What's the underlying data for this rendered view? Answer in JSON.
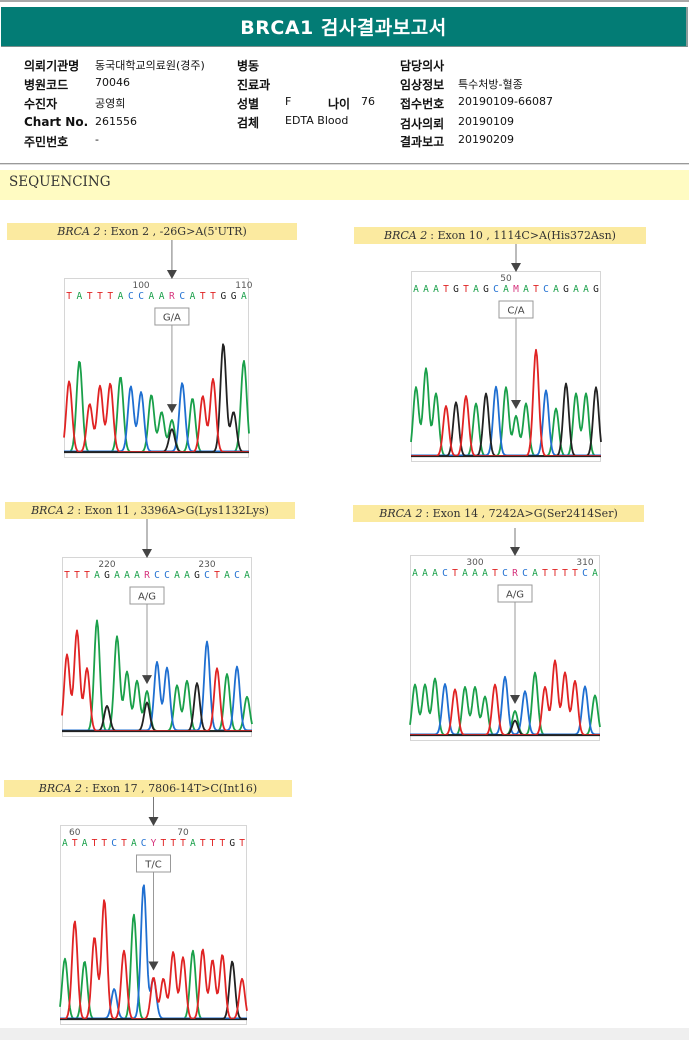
{
  "report": {
    "title": "BRCA1 검사결과보고서",
    "accent_color": "#037c75"
  },
  "patient_info": {
    "left": [
      {
        "label": "의뢰기관명",
        "value": "동국대학교의료원(경주)"
      },
      {
        "label": "병원코드",
        "value": "70046"
      },
      {
        "label": "수진자",
        "value": "공영희"
      },
      {
        "label": "Chart No.",
        "value": "261556"
      },
      {
        "label": "주민번호",
        "value": "-"
      }
    ],
    "middle": [
      {
        "label": "병동",
        "value": ""
      },
      {
        "label": "진료과",
        "value": ""
      },
      {
        "label": "성별",
        "value": "F"
      },
      {
        "label": "검체",
        "value": "EDTA Blood"
      }
    ],
    "age": {
      "label": "나이",
      "value": "76"
    },
    "right": [
      {
        "label": "담당의사",
        "value": ""
      },
      {
        "label": "임상정보",
        "value": "특수처방-혈종"
      },
      {
        "label": "접수번호",
        "value": "20190109-66087"
      },
      {
        "label": "검사의뢰",
        "value": "20190109"
      },
      {
        "label": "결과보고",
        "value": "20190209"
      }
    ]
  },
  "section": {
    "title": "SEQUENCING"
  },
  "base_colors": {
    "A": "#1aa04a",
    "C": "#1f6fd1",
    "G": "#222222",
    "T": "#e02424",
    "ambiguous": "#d6337c"
  },
  "variants": [
    {
      "gene": "BRCA 2",
      "description": ": Exon 2 , -26G>A(5'UTR)",
      "call": "G/A",
      "sequence": "TATTTACCAARCATTGGA",
      "variant_index": 10,
      "position_labels": [
        {
          "text": "100",
          "index": 7
        },
        {
          "text": "110",
          "index": 17
        }
      ],
      "peaks": [
        {
          "b": "T",
          "h": 0.62
        },
        {
          "b": "A",
          "h": 0.8
        },
        {
          "b": "T",
          "h": 0.42
        },
        {
          "b": "T",
          "h": 0.58
        },
        {
          "b": "T",
          "h": 0.6
        },
        {
          "b": "A",
          "h": 0.66
        },
        {
          "b": "C",
          "h": 0.57
        },
        {
          "b": "C",
          "h": 0.52
        },
        {
          "b": "A",
          "h": 0.5
        },
        {
          "b": "A",
          "h": 0.35
        },
        {
          "b": "A",
          "h": 0.28,
          "minor": "G",
          "mh": 0.2
        },
        {
          "b": "C",
          "h": 0.6
        },
        {
          "b": "A",
          "h": 0.47
        },
        {
          "b": "T",
          "h": 0.49
        },
        {
          "b": "T",
          "h": 0.64
        },
        {
          "b": "G",
          "h": 0.95
        },
        {
          "b": "G",
          "h": 0.35
        },
        {
          "b": "A",
          "h": 0.8
        }
      ]
    },
    {
      "gene": "BRCA 2",
      "description": ": Exon 10 , 1114C>A(His372Asn)",
      "call": "C/A",
      "sequence": "AAATGTAGCAMATCAGAAG",
      "variant_index": 10,
      "position_labels": [
        {
          "text": "50",
          "index": 9
        }
      ],
      "peaks": [
        {
          "b": "A",
          "h": 0.55
        },
        {
          "b": "A",
          "h": 0.7
        },
        {
          "b": "A",
          "h": 0.5
        },
        {
          "b": "T",
          "h": 0.4
        },
        {
          "b": "G",
          "h": 0.43
        },
        {
          "b": "T",
          "h": 0.48
        },
        {
          "b": "A",
          "h": 0.42
        },
        {
          "b": "G",
          "h": 0.5
        },
        {
          "b": "C",
          "h": 0.55
        },
        {
          "b": "A",
          "h": 0.55
        },
        {
          "b": "A",
          "h": 0.32,
          "minor": "C",
          "mh": 0.0
        },
        {
          "b": "A",
          "h": 0.42
        },
        {
          "b": "T",
          "h": 0.85
        },
        {
          "b": "C",
          "h": 0.52
        },
        {
          "b": "A",
          "h": 0.38
        },
        {
          "b": "G",
          "h": 0.58
        },
        {
          "b": "A",
          "h": 0.5
        },
        {
          "b": "A",
          "h": 0.5
        },
        {
          "b": "G",
          "h": 0.55
        }
      ]
    },
    {
      "gene": "BRCA 2",
      "description": ": Exon 11 , 3396A>G(Lys1132Lys)",
      "call": "A/G",
      "sequence": "TTTAGAAARCCAAGCTACA",
      "variant_index": 8,
      "position_labels": [
        {
          "text": "220",
          "index": 4
        },
        {
          "text": "230",
          "index": 14
        }
      ],
      "peaks": [
        {
          "b": "T",
          "h": 0.67
        },
        {
          "b": "T",
          "h": 0.88
        },
        {
          "b": "T",
          "h": 0.55
        },
        {
          "b": "A",
          "h": 0.97
        },
        {
          "b": "G",
          "h": 0.22
        },
        {
          "b": "A",
          "h": 0.83
        },
        {
          "b": "A",
          "h": 0.52
        },
        {
          "b": "A",
          "h": 0.44
        },
        {
          "b": "A",
          "h": 0.35,
          "minor": "G",
          "mh": 0.25
        },
        {
          "b": "C",
          "h": 0.6
        },
        {
          "b": "C",
          "h": 0.55
        },
        {
          "b": "A",
          "h": 0.4
        },
        {
          "b": "A",
          "h": 0.44
        },
        {
          "b": "G",
          "h": 0.42
        },
        {
          "b": "C",
          "h": 0.78
        },
        {
          "b": "T",
          "h": 0.55
        },
        {
          "b": "A",
          "h": 0.5
        },
        {
          "b": "C",
          "h": 0.56
        },
        {
          "b": "A",
          "h": 0.3
        }
      ]
    },
    {
      "gene": "BRCA 2",
      "description": ": Exon 14 , 7242A>G(Ser2414Ser)",
      "call": "A/G",
      "sequence": "AAACTAAATCRCATTTTCA",
      "variant_index": 10,
      "position_labels": [
        {
          "text": "300",
          "index": 6
        },
        {
          "text": "310",
          "index": 17
        }
      ],
      "peaks": [
        {
          "b": "A",
          "h": 0.42
        },
        {
          "b": "A",
          "h": 0.42
        },
        {
          "b": "A",
          "h": 0.47
        },
        {
          "b": "C",
          "h": 0.42
        },
        {
          "b": "T",
          "h": 0.38
        },
        {
          "b": "A",
          "h": 0.4
        },
        {
          "b": "A",
          "h": 0.4
        },
        {
          "b": "A",
          "h": 0.32
        },
        {
          "b": "T",
          "h": 0.42
        },
        {
          "b": "C",
          "h": 0.48
        },
        {
          "b": "A",
          "h": 0.2,
          "minor": "G",
          "mh": 0.12
        },
        {
          "b": "C",
          "h": 0.36
        },
        {
          "b": "A",
          "h": 0.52
        },
        {
          "b": "T",
          "h": 0.4
        },
        {
          "b": "T",
          "h": 0.62
        },
        {
          "b": "T",
          "h": 0.52
        },
        {
          "b": "T",
          "h": 0.45
        },
        {
          "b": "C",
          "h": 0.4
        },
        {
          "b": "A",
          "h": 0.33
        }
      ]
    },
    {
      "gene": "BRCA 2",
      "description": ": Exon 17 , 7806-14T>C(Int16)",
      "call": "T/C",
      "sequence": "ATATTCTACYTTTATTTGT",
      "variant_index": 9,
      "position_labels": [
        {
          "text": "60",
          "index": 1
        },
        {
          "text": "70",
          "index": 12
        }
      ],
      "peaks": [
        {
          "b": "A",
          "h": 0.45
        },
        {
          "b": "T",
          "h": 0.73
        },
        {
          "b": "A",
          "h": 0.43
        },
        {
          "b": "T",
          "h": 0.61
        },
        {
          "b": "T",
          "h": 0.89
        },
        {
          "b": "C",
          "h": 0.22
        },
        {
          "b": "T",
          "h": 0.51
        },
        {
          "b": "A",
          "h": 0.78
        },
        {
          "b": "C",
          "h": 1.0
        },
        {
          "b": "T",
          "h": 0.31,
          "minor": "C",
          "mh": 0.3
        },
        {
          "b": "T",
          "h": 0.3
        },
        {
          "b": "T",
          "h": 0.5
        },
        {
          "b": "T",
          "h": 0.46
        },
        {
          "b": "A",
          "h": 0.51
        },
        {
          "b": "T",
          "h": 0.52
        },
        {
          "b": "T",
          "h": 0.44
        },
        {
          "b": "T",
          "h": 0.48
        },
        {
          "b": "G",
          "h": 0.43
        },
        {
          "b": "T",
          "h": 0.3
        }
      ]
    }
  ]
}
